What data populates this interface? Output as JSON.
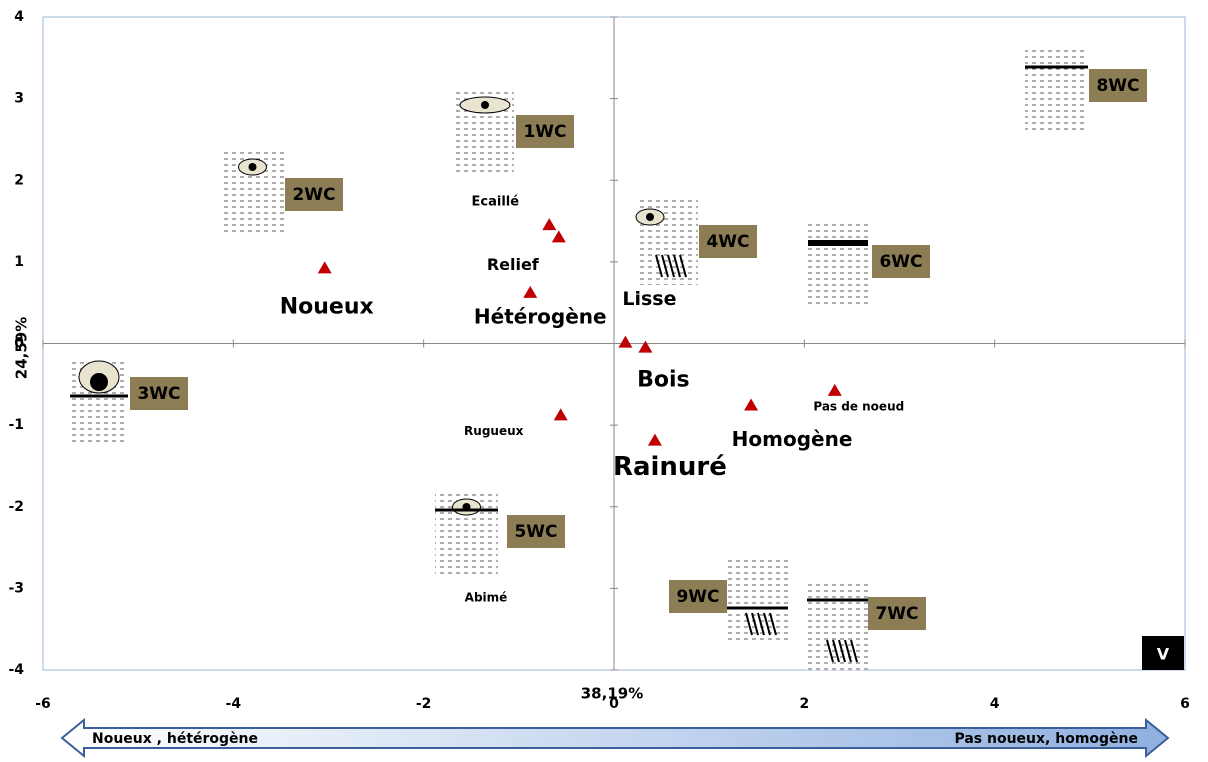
{
  "chart_data": {
    "type": "scatter",
    "x_label": "38,19%",
    "y_label": "24,59%",
    "xlim": [
      -6,
      6
    ],
    "xticks": [
      -6,
      -4,
      -2,
      0,
      2,
      4,
      6
    ],
    "ylim": [
      -4,
      4
    ],
    "yticks": [
      -4,
      -3,
      -2,
      -1,
      0,
      1,
      2,
      3,
      4
    ],
    "series": [
      {
        "color": "#c00000",
        "labels": [
          "Noueux",
          "Ecaillé",
          "Relief",
          "Hétérogène",
          "Lisse",
          "Bois",
          "Rugueux",
          "Rainuré",
          "Homogène",
          "Pas de noeud"
        ],
        "x": [
          -3.04,
          -0.68,
          -0.58,
          -0.88,
          0.12,
          0.33,
          -0.56,
          0.43,
          1.44,
          2.32
        ],
        "values": [
          0.92,
          1.45,
          1.3,
          0.62,
          0.01,
          -0.05,
          -0.88,
          -1.19,
          -0.76,
          -0.58
        ]
      }
    ],
    "annotations": [
      "Abimé"
    ],
    "groups": [
      "1WC",
      "2WC",
      "3WC",
      "4WC",
      "5WC",
      "6WC",
      "7WC",
      "8WC",
      "9WC"
    ],
    "badge": "V",
    "arrow_left": "Noueux , hétérogène",
    "arrow_right": "Pas noueux, homogène"
  }
}
